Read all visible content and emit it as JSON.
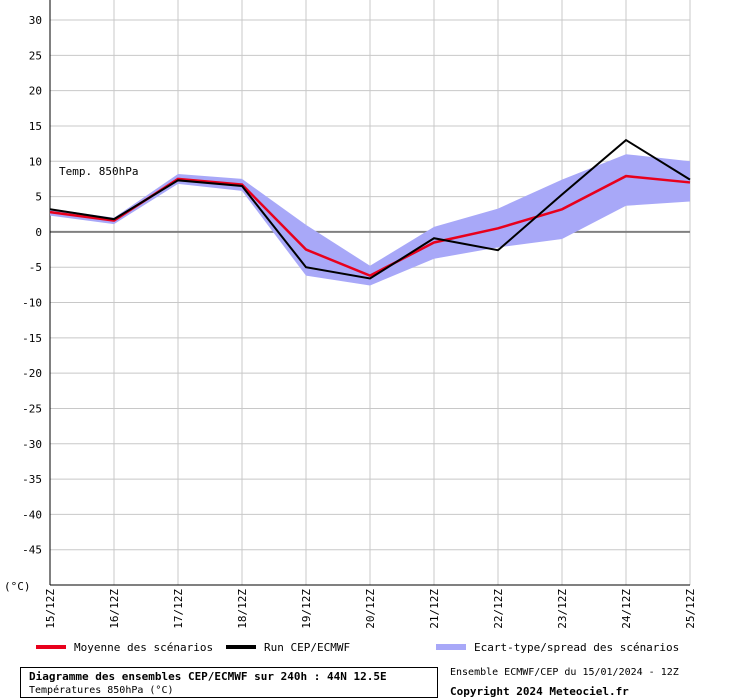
{
  "chart_data": {
    "type": "line",
    "annotation": "Temp. 850hPa",
    "ylabel": "(°C)",
    "ylim": [
      -50,
      30
    ],
    "yticks": [
      30,
      25,
      20,
      15,
      10,
      5,
      0,
      -5,
      -10,
      -15,
      -20,
      -25,
      -30,
      -35,
      -40,
      -45
    ],
    "categories": [
      "15/12Z",
      "16/12Z",
      "17/12Z",
      "18/12Z",
      "19/12Z",
      "20/12Z",
      "21/12Z",
      "22/12Z",
      "23/12Z",
      "24/12Z",
      "25/12Z"
    ],
    "grid": true,
    "series": [
      {
        "name": "Moyenne des scénarios",
        "color": "#e8001c",
        "values": [
          2.8,
          1.6,
          7.5,
          6.7,
          -2.5,
          -6.2,
          -1.5,
          0.5,
          3.2,
          7.9,
          7.0
        ]
      },
      {
        "name": "Run CEP/ECMWF",
        "color": "#000000",
        "values": [
          3.2,
          1.8,
          7.3,
          6.5,
          -5.0,
          -6.6,
          -0.9,
          -2.6,
          5.3,
          13.0,
          7.4
        ]
      }
    ],
    "spread": {
      "name": "Ecart-type/spread des scénarios",
      "color": "#a8a8f8",
      "upper": [
        3.3,
        2.0,
        8.2,
        7.5,
        1.0,
        -4.8,
        0.7,
        3.3,
        7.4,
        11.0,
        10.0
      ],
      "lower": [
        2.3,
        1.1,
        6.8,
        5.8,
        -6.2,
        -7.6,
        -3.8,
        -2.2,
        -1.0,
        3.7,
        4.3
      ]
    }
  },
  "footer": {
    "title": "Diagramme des ensembles CEP/ECMWF sur 240h : 44N 12.5E",
    "subtitle": "Températures 850hPa (°C)",
    "run_info": "Ensemble ECMWF/CEP du 15/01/2024 - 12Z",
    "copyright": "Copyright 2024 Meteociel.fr"
  }
}
